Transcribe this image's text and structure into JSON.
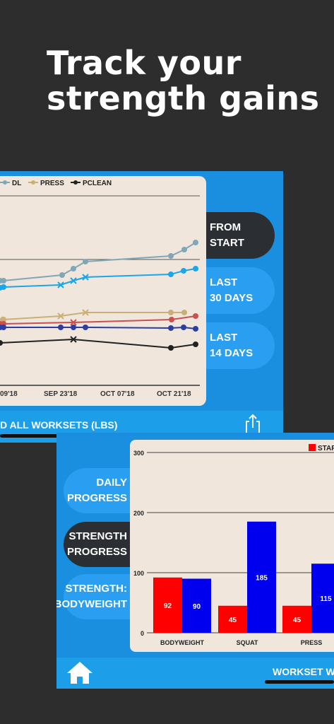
{
  "headline": {
    "line1": "Track your",
    "line2": "strength gains"
  },
  "top_screen": {
    "ranges": [
      {
        "line1": "FROM",
        "line2": "START",
        "active": true
      },
      {
        "line1": "LAST",
        "line2": "30 DAYS",
        "active": false
      },
      {
        "line1": "LAST",
        "line2": "14 DAYS",
        "active": false
      }
    ],
    "bottom_bar_label": "D ALL WORKSETS (LBS)",
    "chart_data": {
      "type": "line",
      "legend": [
        "DL",
        "PRESS",
        "PCLEAN"
      ],
      "x_ticks": [
        "09'18",
        "SEP 23'18",
        "OCT 07'18",
        "OCT 21'18"
      ],
      "series": [
        {
          "name": "DL",
          "color": "#7fa7b8",
          "points": [
            [
              0,
              397
            ],
            [
              5,
              397
            ],
            [
              88,
              389
            ],
            [
              104,
              380
            ],
            [
              121,
              370
            ],
            [
              242,
              362
            ],
            [
              261,
              353
            ],
            [
              277,
              343
            ]
          ]
        },
        {
          "color": "#1aa6e8",
          "points": [
            [
              0,
              407
            ],
            [
              5,
              406
            ],
            [
              86,
              403
            ],
            [
              104,
              397
            ],
            [
              121,
              392
            ],
            [
              242,
              388
            ],
            [
              260,
              383
            ],
            [
              277,
              380
            ]
          ]
        },
        {
          "name": "PRESS",
          "color": "#c9b077",
          "points": [
            [
              0,
              452
            ],
            [
              5,
              452
            ],
            [
              86,
              447
            ],
            [
              121,
              442
            ],
            [
              242,
              442
            ],
            [
              261,
              442
            ]
          ]
        },
        {
          "color": "#c85050",
          "points": [
            [
              0,
              458
            ],
            [
              5,
              458
            ],
            [
              104,
              456
            ],
            [
              243,
              452
            ],
            [
              277,
              447
            ]
          ]
        },
        {
          "color": "#2c3fa0",
          "points": [
            [
              0,
              463
            ],
            [
              5,
              463
            ],
            [
              86,
              463
            ],
            [
              104,
              463
            ],
            [
              121,
              463
            ],
            [
              242,
              464
            ],
            [
              260,
              463
            ],
            [
              277,
              465
            ]
          ]
        },
        {
          "name": "PCLEAN",
          "color": "#222222",
          "points": [
            [
              0,
              485
            ],
            [
              104,
              480
            ],
            [
              242,
              492
            ],
            [
              277,
              487
            ]
          ]
        }
      ]
    }
  },
  "bottom_screen": {
    "menu": [
      {
        "line1": "DAILY",
        "line2": "PROGRESS",
        "active": false
      },
      {
        "line1": "STRENGTH",
        "line2": "PROGRESS",
        "active": true
      },
      {
        "line1": "STRENGTH:",
        "line2": "BODYWEIGHT",
        "active": false
      }
    ],
    "bottom_bar_label": "WORKSET WEIGH",
    "chart_data": {
      "type": "bar",
      "legend": [
        "STAR"
      ],
      "categories": [
        "BODYWEIGHT",
        "SQUAT",
        "PRESS"
      ],
      "series": [
        {
          "name": "START",
          "color": "#ff0000",
          "values": [
            92,
            45,
            45
          ]
        },
        {
          "color": "#0000ee",
          "values": [
            90,
            185,
            115
          ]
        }
      ],
      "y_ticks": [
        0,
        100,
        200,
        300
      ],
      "ylim": [
        0,
        300
      ]
    }
  },
  "colors": {
    "bg": "#2d2d2d",
    "app_blue": "#1a8fe0",
    "card": "#f0e6dc",
    "dark_pill": "#2b2f33"
  }
}
